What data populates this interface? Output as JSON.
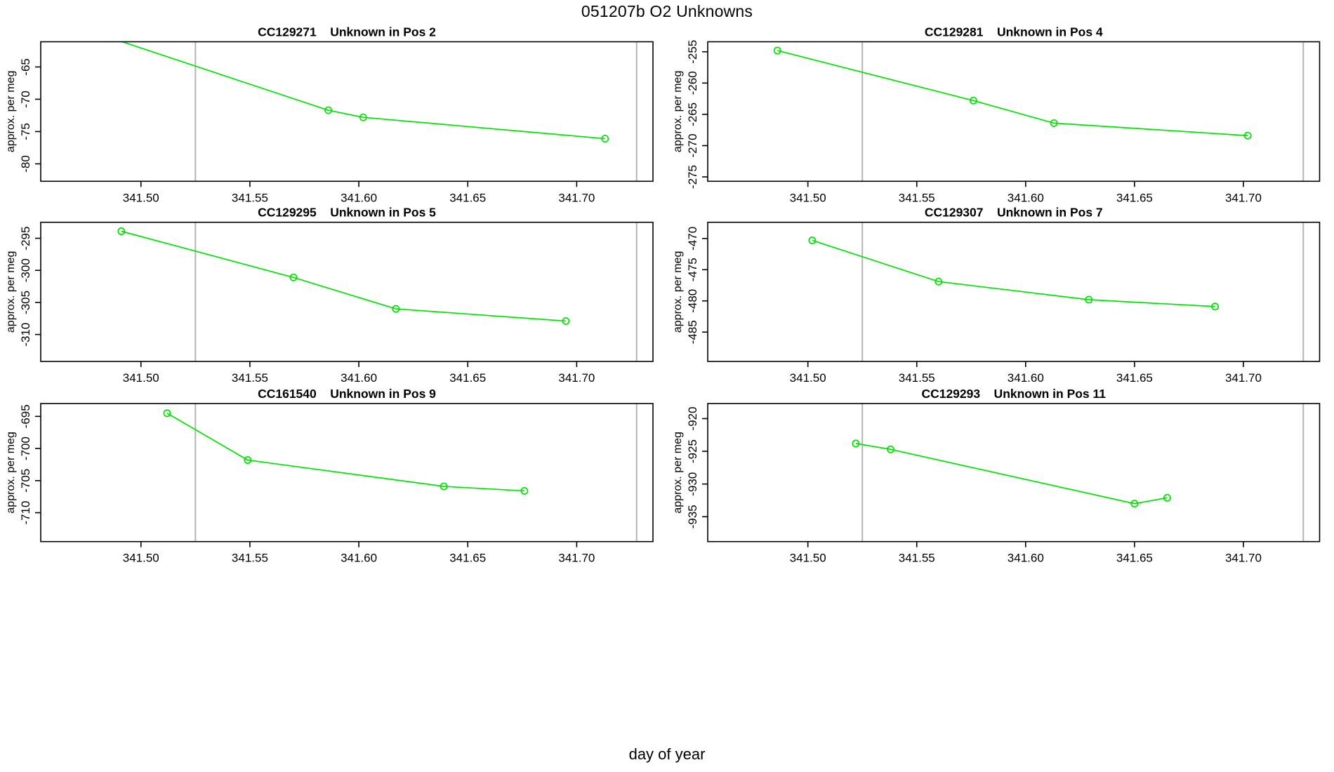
{
  "figure": {
    "title": "051207b  O2 Unknowns",
    "xlabel": "day of year",
    "ylabel": "approx. per meg",
    "colors": {
      "line": "#00e300",
      "guide": "#b4b4b4",
      "axis": "#000000",
      "background": "#ffffff"
    }
  },
  "chart_data": {
    "type": "line",
    "layout_hint": "3 rows x 2 cols, shared x axis, open-circle markers, vertical gray guide lines",
    "xlabel": "day of year",
    "ylabel": "approx. per meg",
    "xlim": [
      341.454,
      341.735
    ],
    "xticks": [
      341.5,
      341.55,
      341.6,
      341.65,
      341.7
    ],
    "xtick_labels": [
      "341.50",
      "341.55",
      "341.60",
      "341.65",
      "341.70"
    ],
    "guide_lines_x": [
      341.525,
      341.7275
    ],
    "panels": [
      {
        "sample_id": "CC129271",
        "position_label": "Unknown in Pos 2",
        "title": "CC129271    Unknown in Pos 2",
        "ylim": [
          -82.7,
          -61.1
        ],
        "yticks": [
          -80,
          -75,
          -70,
          -65
        ],
        "ytick_labels": [
          "-80",
          "-75",
          "-70",
          "-65"
        ],
        "x": [
          341.487,
          341.586,
          341.602,
          341.713
        ],
        "y": [
          -60.6,
          -71.7,
          -72.8,
          -76.1
        ]
      },
      {
        "sample_id": "CC129281",
        "position_label": "Unknown in Pos 4",
        "title": "CC129281    Unknown in Pos 4",
        "ylim": [
          -275.7,
          -253.4
        ],
        "yticks": [
          -275,
          -270,
          -265,
          -260,
          -255
        ],
        "ytick_labels": [
          "-275",
          "-270",
          "-265",
          "-260",
          "-255"
        ],
        "x": [
          341.486,
          341.576,
          341.613,
          341.702
        ],
        "y": [
          -254.8,
          -262.8,
          -266.4,
          -268.4
        ]
      },
      {
        "sample_id": "CC129295",
        "position_label": "Unknown in Pos 5",
        "title": "CC129295    Unknown in Pos 5",
        "ylim": [
          -314.2,
          -292.5
        ],
        "yticks": [
          -310,
          -305,
          -300,
          -295
        ],
        "ytick_labels": [
          "-310",
          "-305",
          "-300",
          "-295"
        ],
        "x": [
          341.491,
          341.57,
          341.617,
          341.695
        ],
        "y": [
          -293.9,
          -301.1,
          -306.0,
          -307.9
        ]
      },
      {
        "sample_id": "CC129307",
        "position_label": "Unknown in Pos 7",
        "title": "CC129307    Unknown in Pos 7",
        "ylim": [
          -489.7,
          -467.4
        ],
        "yticks": [
          -485,
          -480,
          -475,
          -470
        ],
        "ytick_labels": [
          "-485",
          "-480",
          "-475",
          "-470"
        ],
        "x": [
          341.502,
          341.56,
          341.629,
          341.687
        ],
        "y": [
          -470.3,
          -476.9,
          -479.8,
          -480.9
        ]
      },
      {
        "sample_id": "CC161540",
        "position_label": "Unknown in Pos 9",
        "title": "CC161540    Unknown in Pos 9",
        "ylim": [
          -714.5,
          -693.0
        ],
        "yticks": [
          -710,
          -705,
          -700,
          -695
        ],
        "ytick_labels": [
          "-710",
          "-705",
          "-700",
          "-695"
        ],
        "x": [
          341.512,
          341.549,
          341.639,
          341.676
        ],
        "y": [
          -694.5,
          -701.8,
          -705.9,
          -706.6
        ]
      },
      {
        "sample_id": "CC129293",
        "position_label": "Unknown in Pos 11",
        "title": "CC129293    Unknown in Pos 11",
        "ylim": [
          -938.8,
          -917.7
        ],
        "yticks": [
          -935,
          -930,
          -925,
          -920
        ],
        "ytick_labels": [
          "-935",
          "-930",
          "-925",
          "-920"
        ],
        "x": [
          341.522,
          341.538,
          341.65,
          341.665
        ],
        "y": [
          -923.8,
          -924.7,
          -933.0,
          -932.1
        ]
      }
    ]
  }
}
